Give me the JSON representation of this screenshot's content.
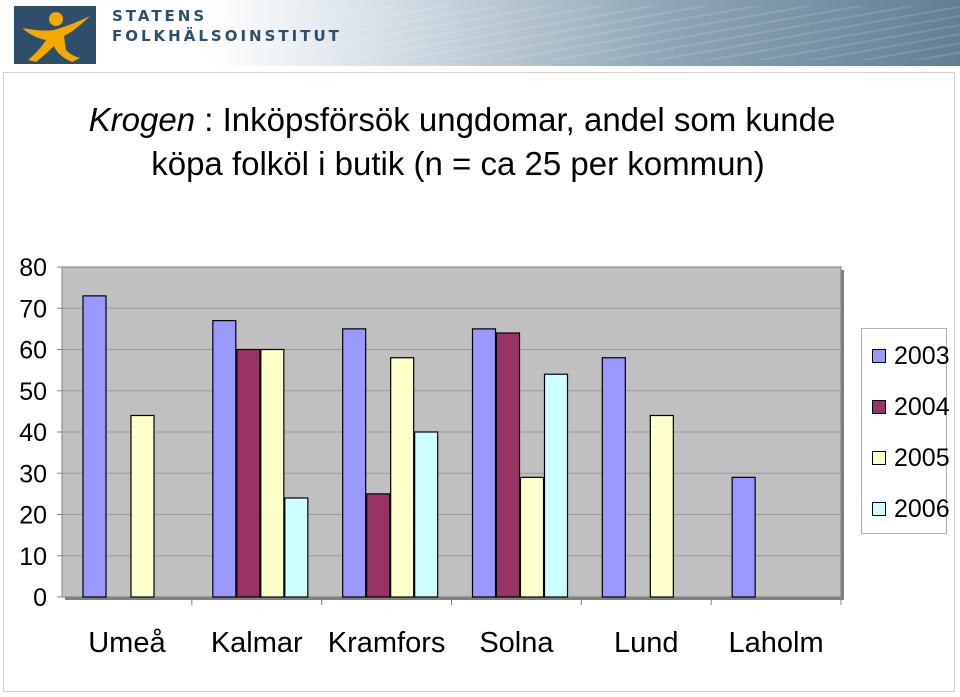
{
  "header": {
    "org_line1": "STATENS",
    "org_line2": "FOLKHÄLSOINSTITUT"
  },
  "title": {
    "italic": "Krogen",
    "rest_line1": " : Inköpsförsök ungdomar, andel som kunde",
    "line2": "köpa folköl i butik (n = ca 25 per kommun)"
  },
  "colors": {
    "2003": "#9999ff",
    "2004": "#993366",
    "2005": "#ffffcc",
    "2006": "#ccffff",
    "plot_bg": "#c0c0c0",
    "logo_bg": "#2e4f6b",
    "logo_figure": "#f2a900"
  },
  "chart_data": {
    "type": "bar",
    "categories": [
      "Umeå",
      "Kalmar",
      "Kramfors",
      "Solna",
      "Lund",
      "Laholm"
    ],
    "series": [
      {
        "name": "2003",
        "values": [
          73,
          67,
          65,
          65,
          58,
          29
        ]
      },
      {
        "name": "2004",
        "values": [
          null,
          60,
          25,
          64,
          null,
          null
        ]
      },
      {
        "name": "2005",
        "values": [
          44,
          60,
          58,
          29,
          44,
          null
        ]
      },
      {
        "name": "2006",
        "values": [
          null,
          24,
          40,
          54,
          null,
          null
        ]
      }
    ],
    "ylim": [
      0,
      80
    ],
    "yticks": [
      0,
      10,
      20,
      30,
      40,
      50,
      60,
      70,
      80
    ],
    "grid": true,
    "legend_position": "right"
  }
}
